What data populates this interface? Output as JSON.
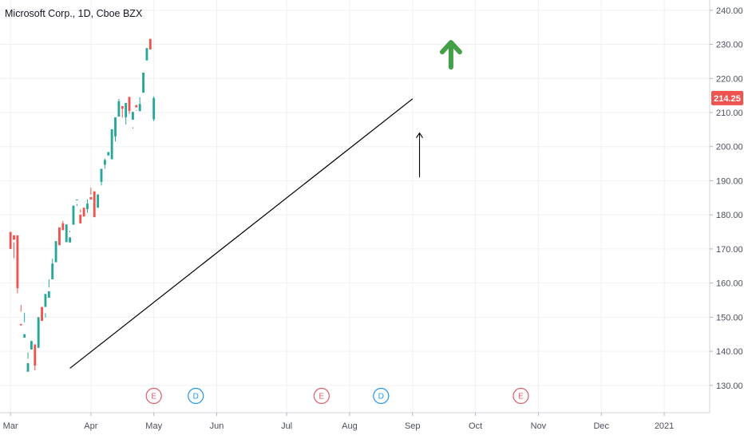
{
  "header": {
    "title": "Microsoft Corp., 1D, Cboe BZX"
  },
  "colors": {
    "up": "#26a69a",
    "down": "#ef5350",
    "grid": "#eef0f4",
    "axis": "#b2b5be",
    "arrow_green": "#43a047",
    "trend": "#000000"
  },
  "last_price": {
    "value": 214.25,
    "label": "214.25"
  },
  "markers": [
    {
      "label": "E",
      "kind": "earnings",
      "date_index": 41
    },
    {
      "label": "D",
      "kind": "dividend",
      "date_index": 53
    },
    {
      "label": "E",
      "kind": "earnings",
      "date_index": 89
    },
    {
      "label": "D",
      "kind": "dividend",
      "date_index": 106
    },
    {
      "label": "E",
      "kind": "earnings",
      "date_index": 146
    }
  ],
  "annotations": {
    "trendline": {
      "from": {
        "date_index": 17,
        "price": 135
      },
      "to": {
        "date_index": 115,
        "price": 214
      }
    },
    "up_arrow": {
      "date_index": 126,
      "price": 228,
      "icon": "green-up-arrow-icon"
    },
    "pointer_arrow": {
      "date_index": 117,
      "from_price": 191,
      "to_price": 204
    }
  },
  "chart_data": {
    "type": "candlestick",
    "title": "Microsoft Corp., 1D, Cboe BZX",
    "yticks": [
      "130.00",
      "140.00",
      "150.00",
      "160.00",
      "170.00",
      "180.00",
      "190.00",
      "200.00",
      "210.00",
      "220.00",
      "230.00",
      "240.00"
    ],
    "xticks": [
      {
        "label": "Mar",
        "date_index": 0
      },
      {
        "label": "Apr",
        "date_index": 23
      },
      {
        "label": "May",
        "date_index": 41
      },
      {
        "label": "Jun",
        "date_index": 59
      },
      {
        "label": "Jul",
        "date_index": 79
      },
      {
        "label": "Aug",
        "date_index": 97
      },
      {
        "label": "Sep",
        "date_index": 115
      },
      {
        "label": "Oct",
        "date_index": 133
      },
      {
        "label": "Nov",
        "date_index": 151
      },
      {
        "label": "Dec",
        "date_index": 169
      },
      {
        "label": "2021",
        "date_index": 187
      }
    ],
    "ylim": [
      122,
      243
    ],
    "xlim": [
      -3,
      200
    ],
    "candles": [
      [
        175,
        173,
        172.5,
        170,
        171.5
      ],
      [
        174,
        172,
        167.3,
        172.7,
        174.1
      ],
      [
        174,
        160.4,
        157,
        158.5,
        155.8
      ],
      [
        148,
        151.6,
        153.6,
        147.6,
        153.5
      ],
      [
        144,
        148.5,
        151.3,
        145,
        146
      ],
      [
        134,
        137.8,
        139.7,
        136.5,
        137.8
      ],
      [
        140.5,
        141.9,
        143.1,
        143,
        142
      ],
      [
        142,
        139.6,
        134.4,
        135.8,
        140.5
      ],
      [
        141,
        141.8,
        143.4,
        150,
        149.3
      ],
      [
        153,
        152.7,
        151.8,
        148.9,
        150.7
      ],
      [
        153,
        151.2,
        149.9,
        156.8,
        157.3
      ],
      [
        155.7,
        158.8,
        161.1,
        157.6,
        157.9
      ],
      [
        161.1,
        162.3,
        167.1,
        165.7,
        165.5
      ],
      [
        166.1,
        169.6,
        169.6,
        172.3,
        167.6
      ],
      [
        176.3,
        171.9,
        174.5,
        171.1,
        174.9
      ],
      [
        177.5,
        177.1,
        178.2,
        175.5,
        174.1
      ],
      [
        172,
        173.5,
        176.7,
        177.2,
        178.7
      ],
      [
        171.9,
        174.9,
        175.3,
        173.4,
        175.9
      ],
      [
        177.1,
        177.2,
        177.2,
        182.7,
        184.6
      ],
      [
        184.5,
        183.2,
        182.6,
        184.5,
        186.2
      ],
      [
        180.1,
        181.6,
        180.7,
        177.5,
        183.1
      ],
      [
        182.1,
        183.9,
        183.9,
        179.5,
        183.7
      ],
      [
        181.7,
        180.6,
        184.5,
        183.3,
        186.3
      ],
      [
        185.2,
        185.9,
        188,
        184.5,
        185.5
      ],
      [
        186.9,
        183.3,
        182.6,
        179.3,
        181.8
      ],
      [
        182.1,
        184.6,
        182,
        186,
        186.6
      ],
      [
        189.7,
        188.6,
        191.6,
        193.5,
        192.7
      ],
      [
        194.7,
        196.5,
        193.5,
        196.1,
        199.4
      ],
      [
        197.4,
        197.8,
        198.4,
        198.4,
        198.6
      ],
      [
        196.3,
        200.8,
        202.7,
        205.1,
        201.6
      ],
      [
        203,
        201.5,
        203.2,
        208.6,
        210.7
      ],
      [
        208.8,
        211.2,
        214,
        213.3,
        210.8
      ],
      [
        211.9,
        208.5,
        211.4,
        211.1,
        207.8
      ],
      [
        208.6,
        209.2,
        206.5,
        212.8,
        213.1
      ],
      [
        214.6,
        214.2,
        209.6,
        210.5,
        212.2
      ],
      [
        207.9,
        205.7,
        205.3,
        210.2,
        211.5
      ],
      [
        212.2,
        210.5,
        210.7,
        211.5,
        209.9
      ],
      [
        210.4,
        214.5,
        211.1,
        212.5,
        215.1
      ],
      [
        215.8,
        217.9,
        220.6,
        221.7,
        224.9
      ],
      [
        225.3,
        227.7,
        227.4,
        228.9,
        229.9
      ],
      [
        231.6,
        230.1,
        229.8,
        228.5,
        225.3
      ],
      [
        208,
        213,
        214.25
      ]
    ]
  }
}
